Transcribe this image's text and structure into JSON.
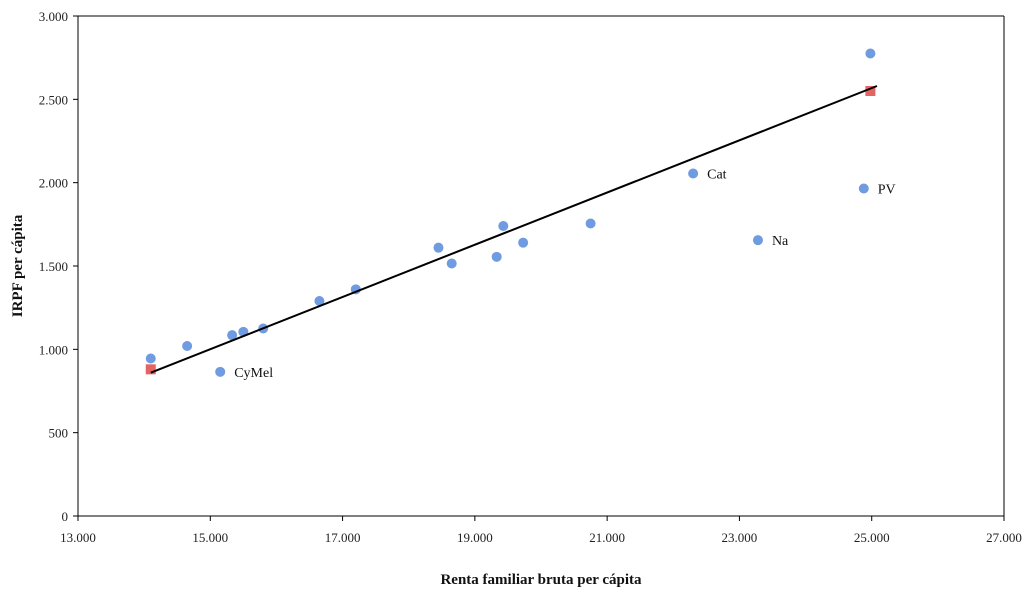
{
  "chart_data": {
    "type": "scatter",
    "xlabel": "Renta familiar bruta per cápita",
    "ylabel": "IRPF per cápita",
    "xlim": [
      13000,
      27000
    ],
    "ylim": [
      0,
      3000
    ],
    "x_ticks": [
      13000,
      15000,
      17000,
      19000,
      21000,
      23000,
      25000,
      27000
    ],
    "x_tick_labels": [
      "13.000",
      "15.000",
      "17.000",
      "19.000",
      "21.000",
      "23.000",
      "25.000",
      "27.000"
    ],
    "y_ticks": [
      0,
      500,
      1000,
      1500,
      2000,
      2500,
      3000
    ],
    "y_tick_labels": [
      "0",
      "500",
      "1.000",
      "1.500",
      "2.000",
      "2.500",
      "3.000"
    ],
    "grid": false,
    "series": [
      {
        "kind": "points",
        "color": "#6f9be0",
        "marker": "circle",
        "points": [
          {
            "x": 14100,
            "y": 945,
            "label": ""
          },
          {
            "x": 14650,
            "y": 1020,
            "label": ""
          },
          {
            "x": 15150,
            "y": 865,
            "label": "CyMel"
          },
          {
            "x": 15330,
            "y": 1085,
            "label": ""
          },
          {
            "x": 15500,
            "y": 1105,
            "label": ""
          },
          {
            "x": 15800,
            "y": 1125,
            "label": ""
          },
          {
            "x": 16650,
            "y": 1290,
            "label": ""
          },
          {
            "x": 17200,
            "y": 1360,
            "label": ""
          },
          {
            "x": 18450,
            "y": 1610,
            "label": ""
          },
          {
            "x": 18650,
            "y": 1515,
            "label": ""
          },
          {
            "x": 19330,
            "y": 1555,
            "label": ""
          },
          {
            "x": 19430,
            "y": 1740,
            "label": ""
          },
          {
            "x": 19730,
            "y": 1640,
            "label": ""
          },
          {
            "x": 20750,
            "y": 1755,
            "label": ""
          },
          {
            "x": 22300,
            "y": 2055,
            "label": "Cat"
          },
          {
            "x": 23280,
            "y": 1655,
            "label": "Na"
          },
          {
            "x": 24880,
            "y": 1965,
            "label": "PV"
          },
          {
            "x": 24980,
            "y": 2775,
            "label": ""
          }
        ]
      },
      {
        "kind": "points",
        "color": "#e46464",
        "marker": "square",
        "points": [
          {
            "x": 14100,
            "y": 880,
            "label": ""
          },
          {
            "x": 24980,
            "y": 2550,
            "label": ""
          }
        ]
      },
      {
        "kind": "trendline",
        "color": "#000000",
        "from": {
          "x": 14100,
          "y": 860
        },
        "to": {
          "x": 25080,
          "y": 2580
        }
      }
    ]
  }
}
